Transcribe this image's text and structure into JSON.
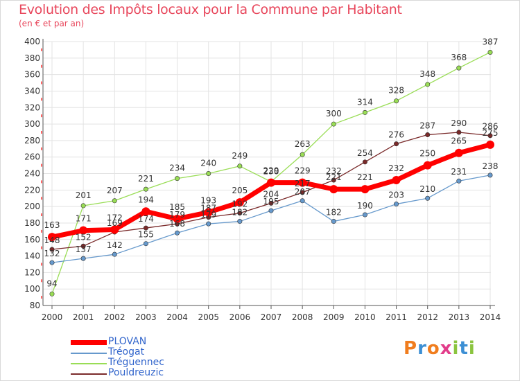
{
  "header": {
    "title": "Evolution des Impôts locaux pour la Commune par Habitant",
    "subtitle": "(en € et par an)"
  },
  "logo": {
    "text": "Proxiti",
    "colors": [
      "#f07d1e",
      "#3c8fd4",
      "#f07d1e",
      "#e23c8a",
      "#8bc43f",
      "#3c8fd4",
      "#8bc43f"
    ]
  },
  "chart_data": {
    "type": "line",
    "x": [
      "2000",
      "2001",
      "2002",
      "2003",
      "2004",
      "2005",
      "2006",
      "2007",
      "2008",
      "2009",
      "2010",
      "2011",
      "2012",
      "2013",
      "2014"
    ],
    "ylim": [
      80,
      400
    ],
    "yticks": [
      80,
      100,
      120,
      140,
      160,
      180,
      200,
      220,
      240,
      260,
      280,
      300,
      320,
      340,
      360,
      380,
      400
    ],
    "grid": true,
    "legend_position": "bottom-left",
    "series": [
      {
        "name": "Tréguennec",
        "color": "#99dd55",
        "values": [
          94,
          201,
          207,
          221,
          234,
          240,
          249,
          230,
          263,
          300,
          314,
          328,
          348,
          368,
          387
        ]
      },
      {
        "name": "Pouldreuzic",
        "color": "#7a2a2a",
        "values": [
          148,
          152,
          169,
          174,
          179,
          187,
          192,
          204,
          217,
          232,
          254,
          276,
          287,
          290,
          286
        ]
      },
      {
        "name": "Tréogat",
        "color": "#6699cc",
        "values": [
          132,
          137,
          142,
          155,
          168,
          179,
          182,
          195,
          207,
          182,
          190,
          203,
          210,
          231,
          238
        ]
      },
      {
        "name": "PLOVAN",
        "color": "#ff0000",
        "values": [
          163,
          171,
          172,
          194,
          185,
          193,
          205,
          229,
          229,
          221,
          221,
          232,
          250,
          265,
          275
        ]
      }
    ],
    "value_labels": {
      "Tréguennec": [
        "94",
        "201",
        "207",
        "221",
        "234",
        "240",
        "249",
        "230",
        "263",
        "300",
        "314",
        "328",
        "348",
        "368",
        "387"
      ],
      "Pouldreuzic": [
        "148",
        "152",
        "169",
        "174",
        "179",
        "187",
        "192",
        "204",
        "217",
        "232",
        "254",
        "276",
        "287",
        "290",
        "286"
      ],
      "Tréogat": [
        "132",
        "137",
        "142",
        "155",
        "168",
        "179",
        "182",
        "195",
        "207",
        "182",
        "190",
        "203",
        "210",
        "231",
        "238"
      ],
      "PLOVAN": [
        "163",
        "171",
        "172",
        "194",
        "185",
        "193",
        "205",
        "229",
        "229",
        "221",
        "221",
        "232",
        "250",
        "265",
        "275"
      ]
    },
    "legend": [
      "PLOVAN",
      "Tréogat",
      "Tréguennec",
      "Pouldreuzic"
    ]
  }
}
